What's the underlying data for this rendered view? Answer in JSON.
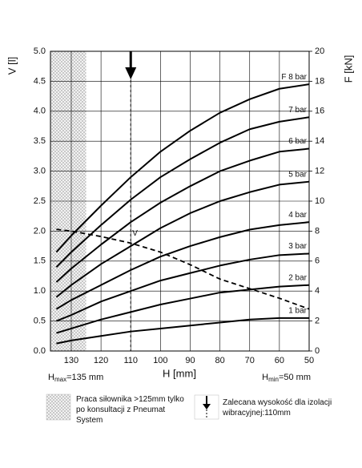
{
  "chart_data": {
    "type": "line",
    "x_label": "H [mm]",
    "y_label": "V [l]",
    "y2_label": "F [kN]",
    "x": [
      135,
      130,
      120,
      110,
      100,
      90,
      80,
      70,
      60,
      50
    ],
    "xlim": [
      137,
      50
    ],
    "xticks": [
      130,
      120,
      110,
      100,
      90,
      80,
      70,
      60,
      50
    ],
    "ylim": [
      0,
      5
    ],
    "yticks": [
      {
        "value": 0,
        "label": "0.0"
      },
      0.5,
      {
        "value": 1,
        "label": "1.0"
      },
      1.5,
      {
        "value": 2,
        "label": "2.0"
      },
      2.5,
      {
        "value": 3,
        "label": "3.0"
      },
      3.5,
      {
        "value": 4,
        "label": "4.0"
      },
      4.5,
      {
        "value": 5,
        "label": "5.0"
      }
    ],
    "y2lim": [
      0,
      20
    ],
    "y2ticks": [
      0,
      2,
      4,
      6,
      8,
      10,
      12,
      14,
      16,
      18,
      20
    ],
    "grid": true,
    "series": [
      {
        "name": "F 8 bar",
        "color": "#000000",
        "axis": "y2",
        "values": [
          6.6,
          7.7,
          9.7,
          11.6,
          13.3,
          14.7,
          15.9,
          16.8,
          17.5,
          17.8
        ]
      },
      {
        "name": "7 bar",
        "color": "#000000",
        "axis": "y2",
        "values": [
          5.6,
          6.6,
          8.4,
          10.1,
          11.6,
          12.8,
          13.9,
          14.8,
          15.3,
          15.6
        ]
      },
      {
        "name": "6 bar",
        "color": "#000000",
        "axis": "y2",
        "values": [
          4.6,
          5.5,
          7.1,
          8.6,
          9.9,
          11.0,
          12.0,
          12.7,
          13.3,
          13.5
        ]
      },
      {
        "name": "5 bar",
        "color": "#000000",
        "axis": "y2",
        "values": [
          3.6,
          4.4,
          5.8,
          7.0,
          8.2,
          9.2,
          10.0,
          10.6,
          11.1,
          11.3
        ]
      },
      {
        "name": "4 bar",
        "color": "#000000",
        "axis": "y2",
        "values": [
          2.8,
          3.4,
          4.4,
          5.4,
          6.3,
          7.0,
          7.6,
          8.1,
          8.4,
          8.6
        ]
      },
      {
        "name": "3 bar",
        "color": "#000000",
        "axis": "y2",
        "values": [
          2.0,
          2.4,
          3.3,
          4.0,
          4.7,
          5.2,
          5.7,
          6.1,
          6.4,
          6.5
        ]
      },
      {
        "name": "2 bar",
        "color": "#000000",
        "axis": "y2",
        "values": [
          1.2,
          1.5,
          2.1,
          2.6,
          3.1,
          3.5,
          3.9,
          4.1,
          4.3,
          4.4
        ]
      },
      {
        "name": "1 bar",
        "color": "#000000",
        "axis": "y2",
        "values": [
          0.5,
          0.7,
          1.0,
          1.3,
          1.5,
          1.7,
          1.9,
          2.1,
          2.2,
          2.2
        ]
      },
      {
        "name": "V",
        "color": "#000000",
        "dashed": true,
        "values": [
          2.03,
          2.0,
          1.91,
          1.8,
          1.65,
          1.44,
          1.2,
          1.04,
          0.88,
          0.7
        ]
      }
    ],
    "shaded_xrange": [
      137,
      125
    ],
    "marker_x": 110,
    "hmax_label": {
      "symbol": "H",
      "subscript": "max",
      "text": "=135 mm"
    },
    "hmin_label": {
      "symbol": "H",
      "subscript": "min",
      "text": "=50 mm"
    },
    "legend": [
      {
        "text": "Praca siłownika >125mm tylko po konsultacji z Pneumat System"
      },
      {
        "text": "Zalecana wysokość dla izolacji wibracyjnej:110mm"
      }
    ]
  }
}
